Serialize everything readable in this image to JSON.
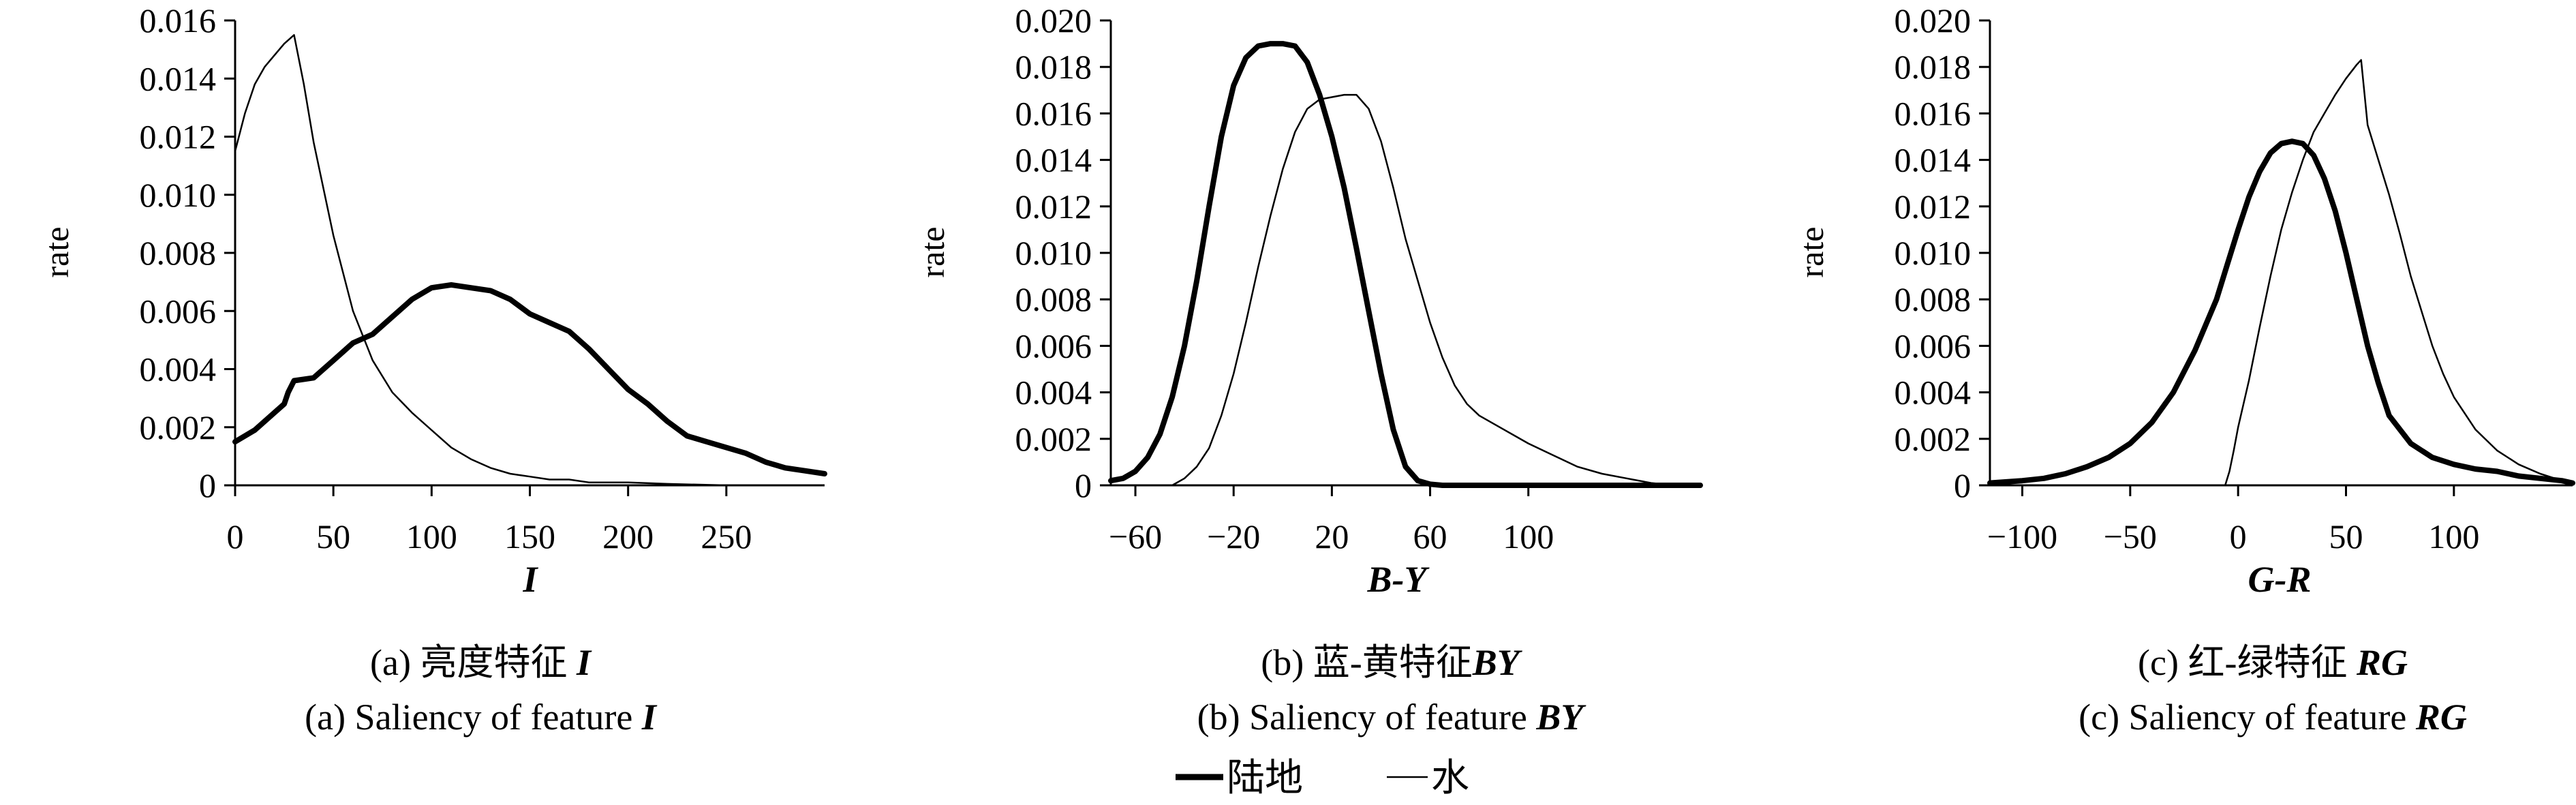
{
  "legend": {
    "land_label": "陆地",
    "water_label": "水"
  },
  "chart_data": [
    {
      "type": "line",
      "xlabel": "I",
      "ylabel": "rate",
      "xlim": [
        0,
        300
      ],
      "ylim": [
        0,
        0.016
      ],
      "x_ticks": [
        {
          "v": 0,
          "label": "0"
        },
        {
          "v": 50,
          "label": "50"
        },
        {
          "v": 100,
          "label": "100"
        },
        {
          "v": 150,
          "label": "150"
        },
        {
          "v": 200,
          "label": "200"
        },
        {
          "v": 250,
          "label": "250"
        }
      ],
      "y_ticks": [
        {
          "v": 0,
          "label": "0"
        },
        {
          "v": 0.002,
          "label": "0.002"
        },
        {
          "v": 0.004,
          "label": "0.004"
        },
        {
          "v": 0.006,
          "label": "0.006"
        },
        {
          "v": 0.008,
          "label": "0.008"
        },
        {
          "v": 0.01,
          "label": "0.010"
        },
        {
          "v": 0.012,
          "label": "0.012"
        },
        {
          "v": 0.014,
          "label": "0.014"
        },
        {
          "v": 0.016,
          "label": "0.016"
        }
      ],
      "caption_cn": {
        "prefix": "(a) 亮度特征 ",
        "emph": "I"
      },
      "caption_en": {
        "prefix": "(a) Saliency of feature ",
        "emph": "I"
      },
      "series": [
        {
          "key": "land",
          "stroke": "#000000",
          "x": [
            0,
            10,
            20,
            25,
            27,
            30,
            40,
            50,
            60,
            70,
            80,
            90,
            100,
            110,
            120,
            130,
            140,
            150,
            160,
            170,
            180,
            190,
            200,
            210,
            220,
            230,
            240,
            250,
            260,
            270,
            280,
            290,
            300
          ],
          "y": [
            0.0015,
            0.0019,
            0.0025,
            0.0028,
            0.0032,
            0.0036,
            0.0037,
            0.0043,
            0.0049,
            0.0052,
            0.0058,
            0.0064,
            0.0068,
            0.0069,
            0.0068,
            0.0067,
            0.0064,
            0.0059,
            0.0056,
            0.0053,
            0.0047,
            0.004,
            0.0033,
            0.0028,
            0.0022,
            0.0017,
            0.0015,
            0.0013,
            0.0011,
            0.0008,
            0.0006,
            0.0005,
            0.0004
          ]
        },
        {
          "key": "water",
          "stroke": "#000000",
          "x": [
            0,
            5,
            10,
            15,
            20,
            25,
            30,
            35,
            40,
            50,
            60,
            70,
            80,
            90,
            100,
            110,
            120,
            130,
            140,
            150,
            160,
            170,
            180,
            200,
            220,
            250,
            270
          ],
          "y": [
            0.0115,
            0.0128,
            0.0138,
            0.0144,
            0.0148,
            0.0152,
            0.0155,
            0.0138,
            0.0118,
            0.0086,
            0.006,
            0.0043,
            0.0032,
            0.0025,
            0.0019,
            0.0013,
            0.0009,
            0.0006,
            0.0004,
            0.0003,
            0.0002,
            0.0002,
            0.0001,
            0.0001,
            5e-05,
            0.0,
            0.0
          ]
        }
      ]
    },
    {
      "type": "line",
      "xlabel": "B-Y",
      "ylabel": "rate",
      "xlim": [
        -70,
        170
      ],
      "ylim": [
        0,
        0.02
      ],
      "x_ticks": [
        {
          "v": -60,
          "label": "−60"
        },
        {
          "v": -20,
          "label": "−20"
        },
        {
          "v": 20,
          "label": "20"
        },
        {
          "v": 60,
          "label": "60"
        },
        {
          "v": 100,
          "label": "100"
        }
      ],
      "y_ticks": [
        {
          "v": 0,
          "label": "0"
        },
        {
          "v": 0.002,
          "label": "0.002"
        },
        {
          "v": 0.004,
          "label": "0.004"
        },
        {
          "v": 0.006,
          "label": "0.006"
        },
        {
          "v": 0.008,
          "label": "0.008"
        },
        {
          "v": 0.01,
          "label": "0.010"
        },
        {
          "v": 0.012,
          "label": "0.012"
        },
        {
          "v": 0.014,
          "label": "0.014"
        },
        {
          "v": 0.016,
          "label": "0.016"
        },
        {
          "v": 0.018,
          "label": "0.018"
        },
        {
          "v": 0.02,
          "label": "0.020"
        }
      ],
      "caption_cn": {
        "prefix": "(b) 蓝-黄特征",
        "emph": "BY"
      },
      "caption_en": {
        "prefix": "(b) Saliency of feature ",
        "emph": "BY"
      },
      "series": [
        {
          "key": "land",
          "stroke": "#000000",
          "x": [
            -70,
            -65,
            -60,
            -55,
            -50,
            -45,
            -40,
            -35,
            -30,
            -25,
            -20,
            -15,
            -10,
            -5,
            0,
            5,
            10,
            15,
            20,
            25,
            30,
            35,
            40,
            45,
            50,
            55,
            60,
            65,
            70,
            80,
            100,
            140,
            170
          ],
          "y": [
            0.0002,
            0.0003,
            0.0006,
            0.0012,
            0.0022,
            0.0038,
            0.006,
            0.0088,
            0.012,
            0.015,
            0.0172,
            0.0184,
            0.0189,
            0.019,
            0.019,
            0.0189,
            0.0182,
            0.0168,
            0.015,
            0.0128,
            0.0102,
            0.0075,
            0.0048,
            0.0024,
            0.0008,
            0.0002,
            5e-05,
            0.0,
            0.0,
            0.0,
            0.0,
            0.0,
            0.0
          ]
        },
        {
          "key": "water",
          "stroke": "#000000",
          "x": [
            -45,
            -40,
            -35,
            -30,
            -25,
            -20,
            -15,
            -10,
            -5,
            0,
            5,
            10,
            15,
            20,
            25,
            30,
            35,
            40,
            45,
            50,
            55,
            60,
            65,
            70,
            75,
            80,
            90,
            100,
            110,
            120,
            130,
            140,
            150,
            160
          ],
          "y": [
            0.0,
            0.0003,
            0.0008,
            0.0016,
            0.003,
            0.0048,
            0.007,
            0.0094,
            0.0116,
            0.0136,
            0.0152,
            0.0162,
            0.0166,
            0.0167,
            0.0168,
            0.0168,
            0.0162,
            0.0148,
            0.0128,
            0.0106,
            0.0088,
            0.007,
            0.0055,
            0.0043,
            0.0035,
            0.003,
            0.0024,
            0.0018,
            0.0013,
            0.0008,
            0.0005,
            0.0003,
            0.0001,
            0.0
          ]
        }
      ]
    },
    {
      "type": "line",
      "xlabel": "G-R",
      "ylabel": "rate",
      "xlim": [
        -115,
        155
      ],
      "ylim": [
        0,
        0.02
      ],
      "x_ticks": [
        {
          "v": -100,
          "label": "−100"
        },
        {
          "v": -50,
          "label": "−50"
        },
        {
          "v": 0,
          "label": "0"
        },
        {
          "v": 50,
          "label": "50"
        },
        {
          "v": 100,
          "label": "100"
        }
      ],
      "y_ticks": [
        {
          "v": 0,
          "label": "0"
        },
        {
          "v": 0.002,
          "label": "0.002"
        },
        {
          "v": 0.004,
          "label": "0.004"
        },
        {
          "v": 0.006,
          "label": "0.006"
        },
        {
          "v": 0.008,
          "label": "0.008"
        },
        {
          "v": 0.01,
          "label": "0.010"
        },
        {
          "v": 0.012,
          "label": "0.012"
        },
        {
          "v": 0.014,
          "label": "0.014"
        },
        {
          "v": 0.016,
          "label": "0.016"
        },
        {
          "v": 0.018,
          "label": "0.018"
        },
        {
          "v": 0.02,
          "label": "0.020"
        }
      ],
      "caption_cn": {
        "prefix": "(c) 红-绿特征 ",
        "emph": "RG"
      },
      "caption_en": {
        "prefix": "(c) Saliency of feature ",
        "emph": "RG"
      },
      "series": [
        {
          "key": "land",
          "stroke": "#000000",
          "x": [
            -115,
            -100,
            -90,
            -80,
            -70,
            -60,
            -50,
            -40,
            -30,
            -20,
            -10,
            -5,
            0,
            5,
            10,
            15,
            20,
            25,
            30,
            35,
            40,
            45,
            50,
            55,
            60,
            65,
            70,
            80,
            90,
            100,
            110,
            120,
            130,
            140,
            150,
            155
          ],
          "y": [
            0.0001,
            0.0002,
            0.0003,
            0.0005,
            0.0008,
            0.0012,
            0.0018,
            0.0027,
            0.004,
            0.0058,
            0.008,
            0.0095,
            0.011,
            0.0124,
            0.0135,
            0.0143,
            0.0147,
            0.0148,
            0.0147,
            0.0142,
            0.0132,
            0.0118,
            0.01,
            0.008,
            0.006,
            0.0044,
            0.003,
            0.0018,
            0.0012,
            0.0009,
            0.0007,
            0.0006,
            0.0004,
            0.0003,
            0.0002,
            0.0001
          ]
        },
        {
          "key": "water",
          "stroke": "#000000",
          "x": [
            -6,
            -4,
            -2,
            0,
            5,
            10,
            15,
            20,
            25,
            30,
            35,
            40,
            45,
            50,
            55,
            57,
            60,
            65,
            70,
            75,
            80,
            85,
            90,
            95,
            100,
            110,
            120,
            130,
            140,
            150,
            155
          ],
          "y": [
            0.0,
            0.0006,
            0.0015,
            0.0025,
            0.0045,
            0.0068,
            0.009,
            0.011,
            0.0126,
            0.014,
            0.0152,
            0.016,
            0.0168,
            0.0175,
            0.0181,
            0.0183,
            0.0155,
            0.014,
            0.0125,
            0.0108,
            0.009,
            0.0075,
            0.006,
            0.0048,
            0.0038,
            0.0024,
            0.0015,
            0.0009,
            0.0005,
            0.0002,
            0.0001
          ]
        }
      ]
    }
  ]
}
